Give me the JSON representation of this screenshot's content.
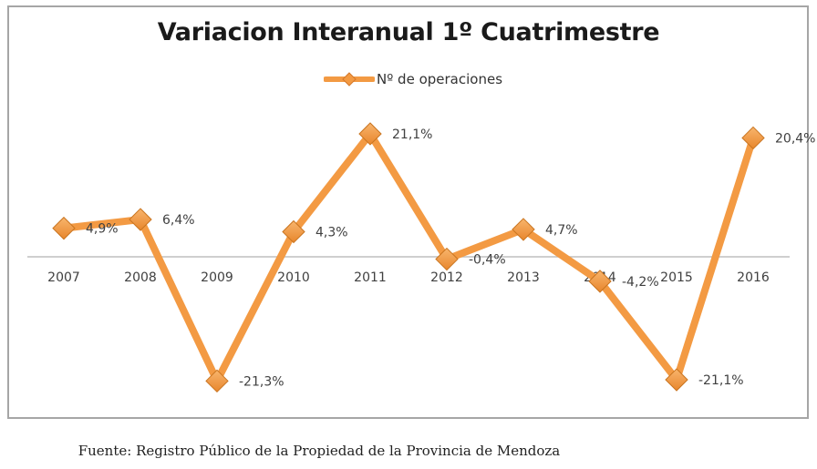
{
  "chart_data": {
    "type": "line",
    "title": "Variacion Interanual 1º Cuatrimestre",
    "xlabel": "",
    "ylabel": "",
    "categories": [
      "2007",
      "2008",
      "2009",
      "2010",
      "2011",
      "2012",
      "2013",
      "2014",
      "2015",
      "2016"
    ],
    "series": [
      {
        "name": "Nº de operaciones",
        "values": [
          4.9,
          6.4,
          -21.3,
          4.3,
          21.1,
          -0.4,
          4.7,
          -4.2,
          -21.1,
          20.4
        ],
        "labels": [
          "4,9%",
          "6,4%",
          "-21,3%",
          "4,3%",
          "21,1%",
          "-0,4%",
          "4,7%",
          "-4,2%",
          "-21,1%",
          "20,4%"
        ],
        "color": "#f39a43",
        "marker": "diamond"
      }
    ],
    "ylim": [
      -25,
      25
    ],
    "grid": false,
    "legend": "top-center",
    "axis_line_color": "#bfbfbf"
  },
  "footer": {
    "source": "Fuente: Registro Público de la Propiedad de la Provincia de Mendoza"
  }
}
